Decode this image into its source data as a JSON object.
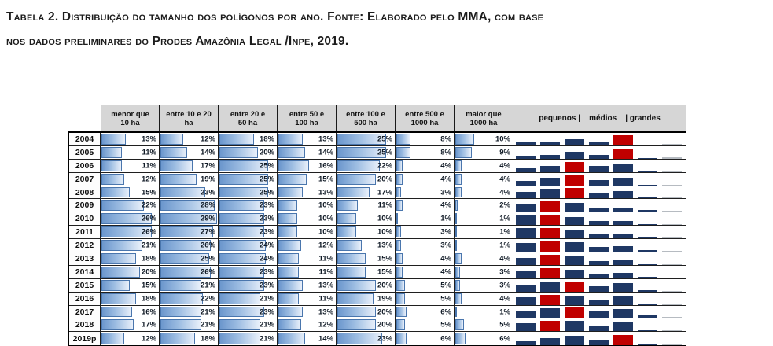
{
  "title": {
    "line1": "Tabela 2. Distribuição do tamanho dos polígonos por ano. Fonte: Elaborado pelo MMA, com base",
    "line2": "nos dados preliminares do Prodes Amazônia Legal /Inpe, 2019."
  },
  "table": {
    "column_headers": [
      {
        "line1": "menor que",
        "line2": "10 ha"
      },
      {
        "line1": "entre 10 e 20",
        "line2": "ha"
      },
      {
        "line1": "entre 20 e",
        "line2": "50 ha"
      },
      {
        "line1": "entre 50 e",
        "line2": "100 ha"
      },
      {
        "line1": "entre 100 e",
        "line2": "500 ha"
      },
      {
        "line1": "entre 500 e",
        "line2": "1000 ha"
      },
      {
        "line1": "maior que",
        "line2": "1000 ha"
      }
    ],
    "spark_header": "pequenos |    médios    | grandes",
    "unit": "%"
  },
  "chart_data": {
    "type": "table",
    "title": "Distribuição do tamanho dos polígonos por ano",
    "columns": [
      "menor que 10 ha",
      "entre 10 e 20 ha",
      "entre 20 e 50 ha",
      "entre 50 e 100 ha",
      "entre 100 e 500 ha",
      "entre 500 e 1000 ha",
      "maior que 1000 ha"
    ],
    "unit": "%",
    "rows": [
      {
        "year": "2004",
        "values": [
          13,
          12,
          18,
          13,
          25,
          8,
          10
        ]
      },
      {
        "year": "2005",
        "values": [
          11,
          14,
          20,
          14,
          25,
          8,
          9
        ]
      },
      {
        "year": "2006",
        "values": [
          11,
          17,
          25,
          16,
          22,
          4,
          4
        ]
      },
      {
        "year": "2007",
        "values": [
          12,
          19,
          25,
          15,
          20,
          4,
          4
        ]
      },
      {
        "year": "2008",
        "values": [
          15,
          23,
          25,
          13,
          17,
          3,
          4
        ]
      },
      {
        "year": "2009",
        "values": [
          22,
          28,
          23,
          10,
          11,
          4,
          2
        ]
      },
      {
        "year": "2010",
        "values": [
          26,
          29,
          23,
          10,
          10,
          1,
          1
        ]
      },
      {
        "year": "2011",
        "values": [
          26,
          27,
          23,
          10,
          10,
          3,
          1
        ]
      },
      {
        "year": "2012",
        "values": [
          21,
          26,
          24,
          12,
          13,
          3,
          1
        ]
      },
      {
        "year": "2013",
        "values": [
          18,
          25,
          24,
          11,
          15,
          4,
          4
        ]
      },
      {
        "year": "2014",
        "values": [
          20,
          26,
          23,
          11,
          15,
          4,
          3
        ]
      },
      {
        "year": "2015",
        "values": [
          15,
          21,
          23,
          13,
          20,
          5,
          3
        ]
      },
      {
        "year": "2016",
        "values": [
          18,
          22,
          21,
          11,
          19,
          5,
          4
        ]
      },
      {
        "year": "2017",
        "values": [
          16,
          21,
          23,
          13,
          20,
          6,
          1
        ]
      },
      {
        "year": "2018",
        "values": [
          17,
          21,
          21,
          12,
          20,
          5,
          5
        ]
      },
      {
        "year": "2019p",
        "values": [
          12,
          18,
          21,
          14,
          23,
          6,
          6
        ]
      }
    ],
    "databar_scale_max": 29,
    "sparkline": {
      "highlight": "row-max",
      "high_color": "#c00000",
      "bar_color": "#1f3864",
      "last_point_color": "#b6bbc1"
    }
  },
  "colors": {
    "databar_fill": "#6c97cd",
    "databar_border": "#4a76ad",
    "header_bg": "#d6d6d6",
    "grid": "#1f1f1f"
  }
}
